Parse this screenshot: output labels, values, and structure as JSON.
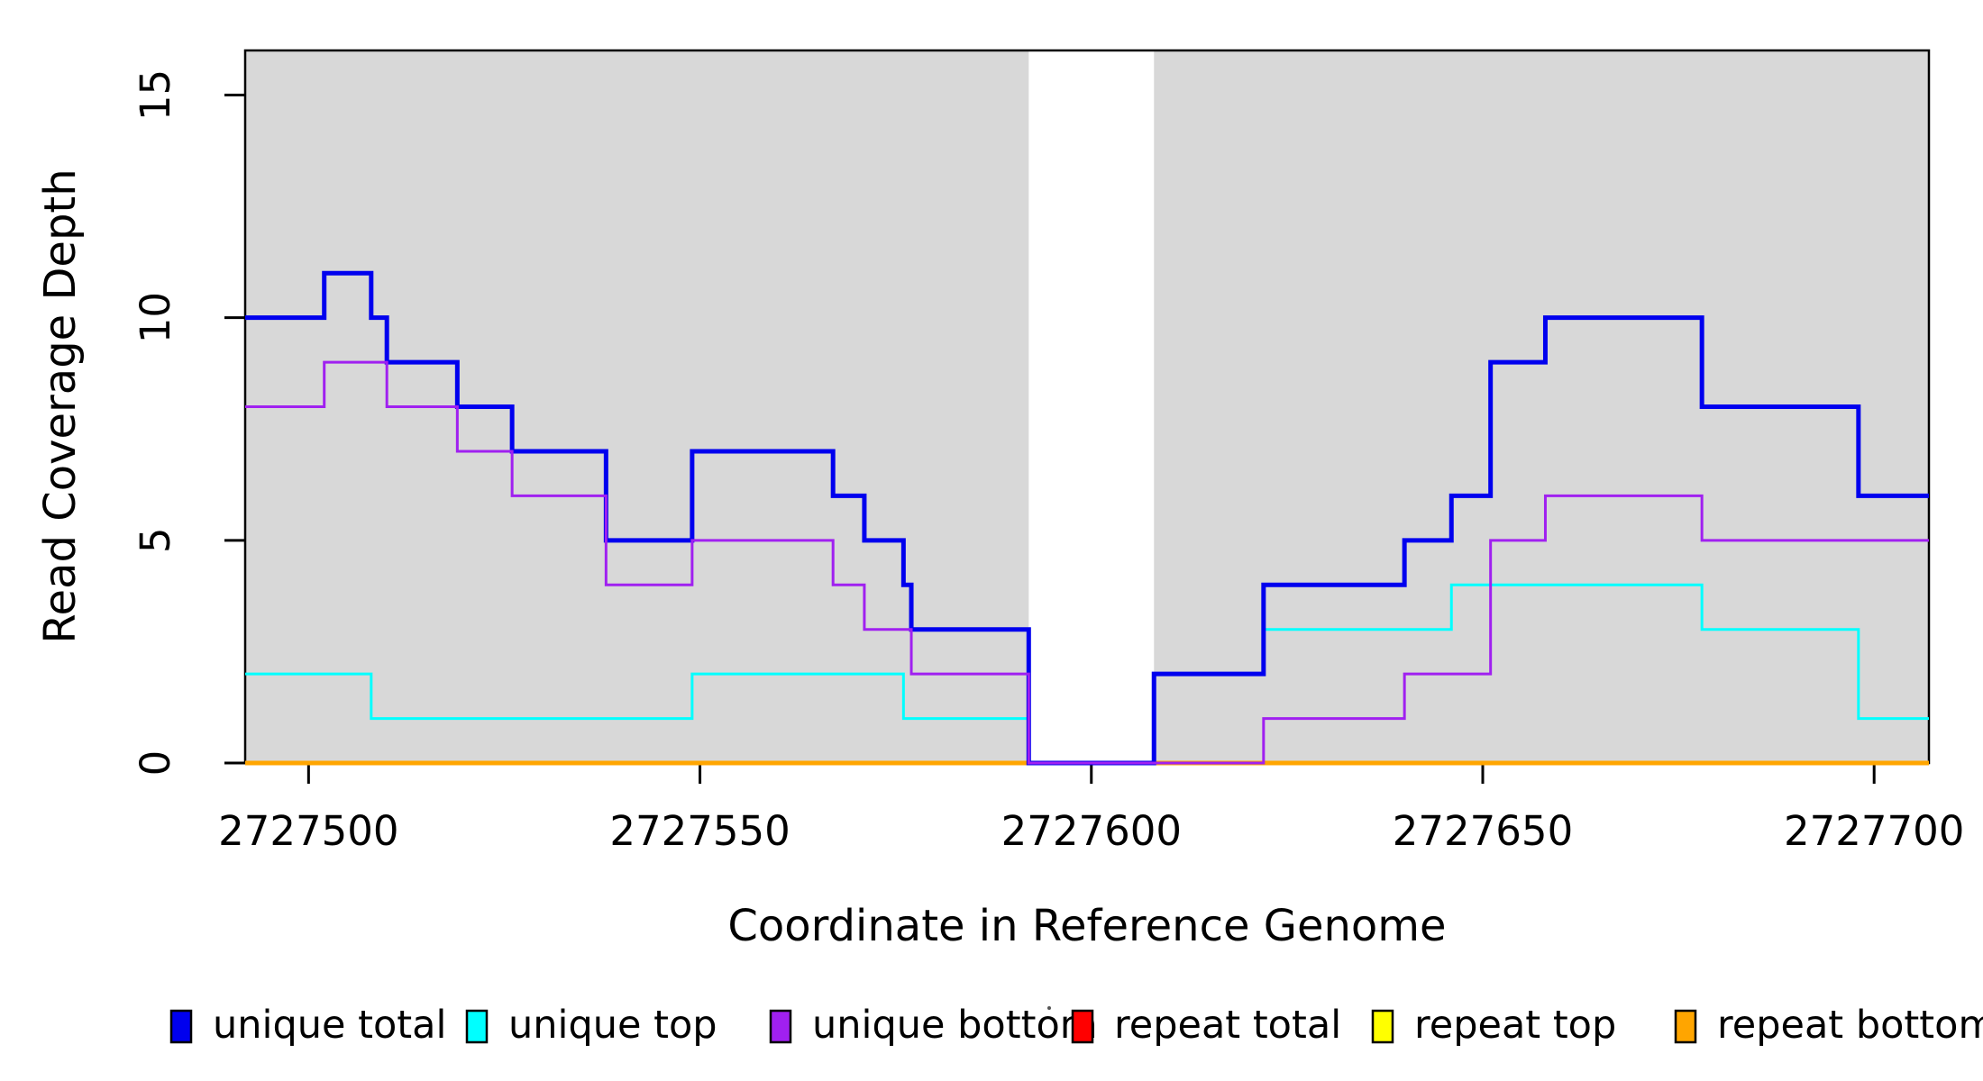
{
  "chart_data": {
    "type": "line",
    "subtype": "step-post",
    "title": "",
    "xlabel": "Coordinate in Reference Genome",
    "ylabel": "Read Coverage Depth",
    "xlim": [
      2727491.9,
      2727707.0
    ],
    "ylim": [
      0,
      16
    ],
    "x_ticks": [
      2727500,
      2727550,
      2727600,
      2727650,
      2727700
    ],
    "x_tick_labels": [
      "2727500",
      "2727550",
      "2727600",
      "2727650",
      "2727700"
    ],
    "y_ticks": [
      0,
      5,
      10,
      15
    ],
    "y_tick_labels": [
      "0",
      "5",
      "10",
      "15"
    ],
    "grid": "off",
    "legend_position": "bottom",
    "shade_color": "#d8d8d8",
    "axis_color": "#000000",
    "shaded_regions": [
      [
        2727491.9,
        2727592
      ],
      [
        2727608,
        2727707
      ]
    ],
    "x_end": 2727707.0,
    "series": [
      {
        "name": "repeat total",
        "color": "#ff0000",
        "stroke_width": 3,
        "x": [
          2727491.9
        ],
        "y": [
          0
        ]
      },
      {
        "name": "repeat top",
        "color": "#ffff00",
        "stroke_width": 3,
        "x": [
          2727491.9
        ],
        "y": [
          0
        ]
      },
      {
        "name": "repeat bottom",
        "color": "#ffa500",
        "stroke_width": 5,
        "x": [
          2727491.9
        ],
        "y": [
          0
        ]
      },
      {
        "name": "unique top",
        "color": "#00ffff",
        "stroke_width": 3,
        "x": [
          2727491.9,
          2727508,
          2727549,
          2727576,
          2727592,
          2727608,
          2727622,
          2727646,
          2727678,
          2727698
        ],
        "y": [
          2,
          1,
          2,
          1,
          0,
          2,
          3,
          4,
          3,
          1
        ]
      },
      {
        "name": "unique total",
        "color": "#0000ee",
        "stroke_width": 5,
        "x": [
          2727491.9,
          2727502,
          2727508,
          2727510,
          2727519,
          2727526,
          2727538,
          2727549,
          2727567,
          2727571,
          2727576,
          2727577,
          2727592,
          2727608,
          2727622,
          2727640,
          2727646,
          2727651,
          2727658,
          2727678,
          2727698
        ],
        "y": [
          10,
          11,
          10,
          9,
          8,
          7,
          5,
          7,
          6,
          5,
          4,
          3,
          0,
          2,
          4,
          5,
          6,
          9,
          10,
          8,
          6
        ]
      },
      {
        "name": "unique bottom",
        "color": "#a020f0",
        "stroke_width": 3,
        "x": [
          2727491.9,
          2727502,
          2727510,
          2727519,
          2727526,
          2727538,
          2727549,
          2727567,
          2727571,
          2727577,
          2727592,
          2727622,
          2727640,
          2727651,
          2727658,
          2727678
        ],
        "y": [
          8,
          9,
          8,
          7,
          6,
          4,
          5,
          4,
          3,
          2,
          0,
          1,
          2,
          5,
          6,
          5
        ]
      }
    ],
    "legend": [
      {
        "label": "unique total",
        "color": "#0000ee"
      },
      {
        "label": "unique top",
        "color": "#00ffff"
      },
      {
        "label": "unique bottom",
        "color": "#a020f0"
      },
      {
        "label": "repeat total",
        "color": "#ff0000"
      },
      {
        "label": "repeat top",
        "color": "#ffff00"
      },
      {
        "label": "repeat bottom",
        "color": "#ffa500"
      }
    ]
  }
}
